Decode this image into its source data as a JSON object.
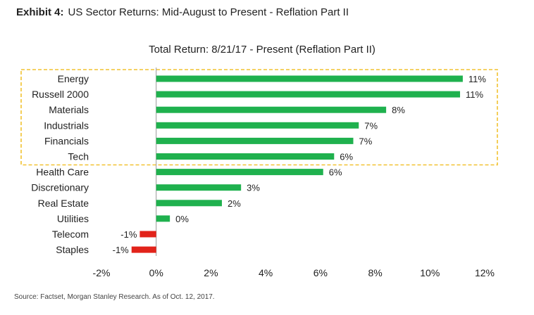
{
  "exhibit": {
    "label": "Exhibit 4:",
    "title": "US Sector Returns: Mid-August to Present - Reflation Part II"
  },
  "source": "Source: Factset, Morgan Stanley Research. As of Oct. 12, 2017.",
  "chart_data": {
    "type": "bar",
    "orientation": "horizontal",
    "title": "Total Return: 8/21/17 - Present (Reflation Part II)",
    "xlabel": "",
    "ylabel": "",
    "categories": [
      "Energy",
      "Russell 2000",
      "Materials",
      "Industrials",
      "Financials",
      "Tech",
      "Health Care",
      "Discretionary",
      "Real Estate",
      "Utilities",
      "Telecom",
      "Staples"
    ],
    "values": [
      11.2,
      11.1,
      8.4,
      7.4,
      7.2,
      6.5,
      6.1,
      3.1,
      2.4,
      0.5,
      -0.6,
      -0.9
    ],
    "data_labels": [
      "11%",
      "11%",
      "8%",
      "7%",
      "7%",
      "6%",
      "6%",
      "3%",
      "2%",
      "0%",
      "-1%",
      "-1%"
    ],
    "xlim": [
      -2,
      12
    ],
    "xticks": [
      -2,
      0,
      2,
      4,
      6,
      8,
      10,
      12
    ],
    "xtick_labels": [
      "-2%",
      "0%",
      "2%",
      "4%",
      "6%",
      "8%",
      "10%",
      "12%"
    ],
    "grid": false,
    "highlight": {
      "categories": [
        "Energy",
        "Russell 2000",
        "Materials",
        "Industrials",
        "Financials",
        "Tech"
      ],
      "style": "dashed-box"
    },
    "colors": {
      "positive": "#1fb14e",
      "negative": "#e2231a",
      "highlight_box": "#f2c230"
    }
  }
}
